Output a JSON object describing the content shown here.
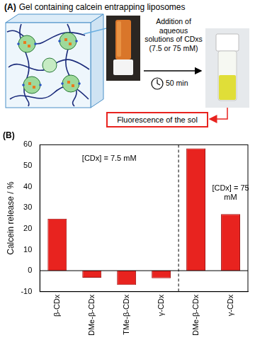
{
  "panel_a": {
    "label": "(A)",
    "caption": "Gel containing calcein entrapping liposomes",
    "step_label": "Addition of aqueous solutions of CDxs (7.5 or 75 mM)",
    "time_label": "50 min",
    "result_label": "Fluorescence of the sol"
  },
  "chart_data": {
    "type": "bar",
    "title": "(B)",
    "y_label": "Calcein release / %",
    "categories": [
      "β-CDx",
      "DMe-β-CDx",
      "TMe-β-CDx",
      "γ-CDx",
      "DMe-β-CDx",
      "γ-CDx"
    ],
    "values": [
      24.8,
      -3.3,
      -6.8,
      -3.6,
      58.3,
      27.0
    ],
    "color": "#e8231f",
    "ylim": [
      -10,
      60
    ],
    "yticks": [
      -10,
      0,
      10,
      20,
      30,
      40,
      50,
      60
    ],
    "grid": false,
    "annotations": [
      "[CDx] = 7.5 mM",
      "[CDx] = 75 mM"
    ]
  }
}
